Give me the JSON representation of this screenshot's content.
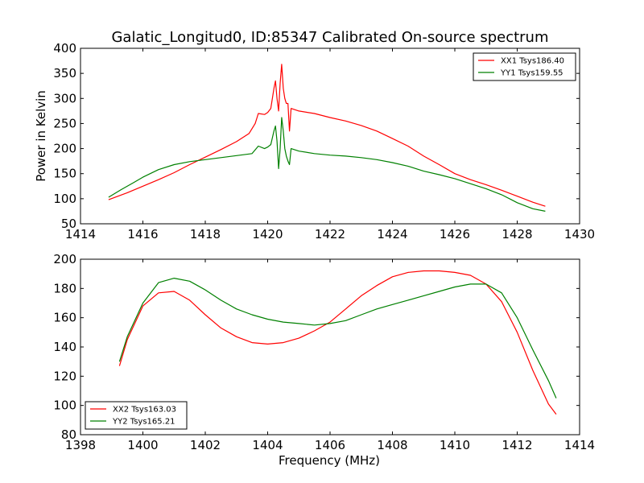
{
  "figure": {
    "title": "Galatic_Longitud0, ID:85347 Calibrated On-source spectrum",
    "xlabel": "Frequency (MHz)",
    "ylabel": "Power in Kelvin"
  },
  "chart_data": [
    {
      "type": "line",
      "title": "Galatic_Longitud0, ID:85347 Calibrated On-source spectrum",
      "xlabel": "",
      "ylabel": "Power in Kelvin",
      "xlim": [
        1414,
        1430
      ],
      "ylim": [
        50,
        400
      ],
      "xticks": [
        1414,
        1416,
        1418,
        1420,
        1422,
        1424,
        1426,
        1428,
        1430
      ],
      "yticks": [
        50,
        100,
        150,
        200,
        250,
        300,
        350,
        400
      ],
      "grid": false,
      "legend_position": "top-right",
      "series": [
        {
          "name": "XX1 Tsys186.40",
          "color": "#ff0000",
          "points": [
            [
              1414.9,
              98
            ],
            [
              1415.5,
              112
            ],
            [
              1416,
              125
            ],
            [
              1416.5,
              138
            ],
            [
              1417,
              152
            ],
            [
              1417.5,
              168
            ],
            [
              1418,
              183
            ],
            [
              1418.5,
              198
            ],
            [
              1419,
              214
            ],
            [
              1419.4,
              230
            ],
            [
              1419.6,
              250
            ],
            [
              1419.7,
              270
            ],
            [
              1419.9,
              268
            ],
            [
              1420.0,
              272
            ],
            [
              1420.1,
              280
            ],
            [
              1420.2,
              320
            ],
            [
              1420.25,
              335
            ],
            [
              1420.3,
              300
            ],
            [
              1420.35,
              275
            ],
            [
              1420.4,
              330
            ],
            [
              1420.45,
              368
            ],
            [
              1420.5,
              320
            ],
            [
              1420.55,
              300
            ],
            [
              1420.6,
              290
            ],
            [
              1420.65,
              290
            ],
            [
              1420.7,
              235
            ],
            [
              1420.75,
              280
            ],
            [
              1421,
              275
            ],
            [
              1421.5,
              270
            ],
            [
              1422,
              262
            ],
            [
              1422.5,
              255
            ],
            [
              1423,
              246
            ],
            [
              1423.5,
              235
            ],
            [
              1424,
              220
            ],
            [
              1424.5,
              205
            ],
            [
              1425,
              185
            ],
            [
              1425.5,
              168
            ],
            [
              1426,
              150
            ],
            [
              1426.5,
              138
            ],
            [
              1427,
              128
            ],
            [
              1427.5,
              117
            ],
            [
              1428,
              105
            ],
            [
              1428.5,
              93
            ],
            [
              1428.9,
              85
            ]
          ]
        },
        {
          "name": "YY1 Tsys159.55",
          "color": "#008000",
          "points": [
            [
              1414.9,
              103
            ],
            [
              1415.3,
              118
            ],
            [
              1415.7,
              132
            ],
            [
              1416,
              143
            ],
            [
              1416.5,
              158
            ],
            [
              1417,
              168
            ],
            [
              1417.5,
              174
            ],
            [
              1418,
              178
            ],
            [
              1418.5,
              182
            ],
            [
              1419,
              186
            ],
            [
              1419.5,
              190
            ],
            [
              1419.7,
              205
            ],
            [
              1419.9,
              200
            ],
            [
              1420.0,
              203
            ],
            [
              1420.1,
              208
            ],
            [
              1420.2,
              235
            ],
            [
              1420.25,
              245
            ],
            [
              1420.3,
              215
            ],
            [
              1420.35,
              160
            ],
            [
              1420.4,
              200
            ],
            [
              1420.45,
              262
            ],
            [
              1420.5,
              235
            ],
            [
              1420.55,
              200
            ],
            [
              1420.6,
              185
            ],
            [
              1420.65,
              175
            ],
            [
              1420.7,
              168
            ],
            [
              1420.75,
              200
            ],
            [
              1421,
              195
            ],
            [
              1421.5,
              190
            ],
            [
              1422,
              187
            ],
            [
              1422.5,
              185
            ],
            [
              1423,
              182
            ],
            [
              1423.5,
              178
            ],
            [
              1424,
              172
            ],
            [
              1424.5,
              165
            ],
            [
              1425,
              155
            ],
            [
              1425.5,
              148
            ],
            [
              1426,
              140
            ],
            [
              1426.5,
              130
            ],
            [
              1427,
              120
            ],
            [
              1427.5,
              108
            ],
            [
              1428,
              92
            ],
            [
              1428.5,
              80
            ],
            [
              1428.9,
              75
            ]
          ]
        }
      ]
    },
    {
      "type": "line",
      "title": "",
      "xlabel": "Frequency (MHz)",
      "ylabel": "",
      "xlim": [
        1398,
        1414
      ],
      "ylim": [
        80,
        200
      ],
      "xticks": [
        1398,
        1400,
        1402,
        1404,
        1406,
        1408,
        1410,
        1412,
        1414
      ],
      "yticks": [
        80,
        100,
        120,
        140,
        160,
        180,
        200
      ],
      "grid": false,
      "legend_position": "lower-left",
      "series": [
        {
          "name": "XX2 Tsys163.03",
          "color": "#ff0000",
          "points": [
            [
              1399.25,
              127
            ],
            [
              1399.5,
              145
            ],
            [
              1400,
              168
            ],
            [
              1400.5,
              177
            ],
            [
              1401,
              178
            ],
            [
              1401.5,
              172
            ],
            [
              1402,
              162
            ],
            [
              1402.5,
              153
            ],
            [
              1403,
              147
            ],
            [
              1403.5,
              143
            ],
            [
              1404,
              142
            ],
            [
              1404.5,
              143
            ],
            [
              1405,
              146
            ],
            [
              1405.5,
              151
            ],
            [
              1406,
              157
            ],
            [
              1406.5,
              166
            ],
            [
              1407,
              175
            ],
            [
              1407.5,
              182
            ],
            [
              1408,
              188
            ],
            [
              1408.5,
              191
            ],
            [
              1409,
              192
            ],
            [
              1409.5,
              192
            ],
            [
              1410,
              191
            ],
            [
              1410.5,
              189
            ],
            [
              1411,
              183
            ],
            [
              1411.5,
              171
            ],
            [
              1412,
              150
            ],
            [
              1412.5,
              124
            ],
            [
              1413,
              101
            ],
            [
              1413.25,
              94
            ]
          ]
        },
        {
          "name": "YY2 Tsys165.21",
          "color": "#008000",
          "points": [
            [
              1399.25,
              130
            ],
            [
              1399.5,
              147
            ],
            [
              1400,
              170
            ],
            [
              1400.5,
              184
            ],
            [
              1401,
              187
            ],
            [
              1401.5,
              185
            ],
            [
              1402,
              179
            ],
            [
              1402.5,
              172
            ],
            [
              1403,
              166
            ],
            [
              1403.5,
              162
            ],
            [
              1404,
              159
            ],
            [
              1404.5,
              157
            ],
            [
              1405,
              156
            ],
            [
              1405.5,
              155
            ],
            [
              1406,
              156
            ],
            [
              1406.5,
              158
            ],
            [
              1407,
              162
            ],
            [
              1407.5,
              166
            ],
            [
              1408,
              169
            ],
            [
              1408.5,
              172
            ],
            [
              1409,
              175
            ],
            [
              1409.5,
              178
            ],
            [
              1410,
              181
            ],
            [
              1410.5,
              183
            ],
            [
              1411,
              183
            ],
            [
              1411.5,
              177
            ],
            [
              1412,
              160
            ],
            [
              1412.5,
              138
            ],
            [
              1413,
              117
            ],
            [
              1413.25,
              105
            ]
          ]
        }
      ]
    }
  ]
}
